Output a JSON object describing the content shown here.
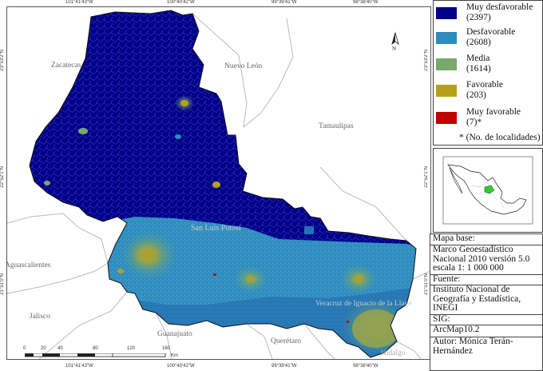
{
  "map": {
    "coords_top": [
      "101°41'43\"W",
      "100°40'42\"W",
      "99°39'41\"W",
      "98°38'40\"W"
    ],
    "coords_bottom": [
      "101°41'43\"W",
      "100°40'42\"W",
      "99°39'41\"W",
      "98°38'40\"W"
    ],
    "coords_left": [
      "23°53'2\"N",
      "22°52'1\"N",
      "21°51'0\"N"
    ],
    "coords_right": [
      "23°53'2\"N",
      "22°52'1\"N",
      "21°51'0\"N"
    ],
    "north_label": "N",
    "neighbor_states": {
      "zacatecas": "Zacatecas",
      "nuevo_leon": "Nuevo León",
      "tamaulipas": "Tamaulipas",
      "aguascalientes": "Aguascalientes",
      "jalisco": "Jalisco",
      "guanajuato": "Guanajuato",
      "queretaro": "Querétaro",
      "hidalgo": "Hidalgo"
    },
    "state_label": "San Luis Potosí",
    "region_label": "Veracruz de Ignacio de la Llave",
    "scale": {
      "ticks": [
        "0",
        "20",
        "40",
        "80",
        "120",
        "160"
      ],
      "unit": "Km"
    }
  },
  "legend": {
    "items": [
      {
        "label": "Muy desfavorable",
        "count": "(2397)",
        "color": "#00008b"
      },
      {
        "label": "Desfavorable",
        "count": "(2608)",
        "color": "#2b8cbe"
      },
      {
        "label": "Media",
        "count": "(1614)",
        "color": "#78a86a"
      },
      {
        "label": "Favorable",
        "count": "(203)",
        "color": "#b5a01e"
      },
      {
        "label": "Muy favorable",
        "count": "(7)*",
        "color": "#c00000"
      }
    ],
    "note": "* (No. de localidades)"
  },
  "info": {
    "rows": [
      "Mapa base:",
      "Marco Geoestadístico\nNacional 2010 versión 5.0\nescala 1: 1 000 000",
      "Fuente:",
      "Instituto Nacional de\nGeografía y Estadística,\nINEGI",
      "SIG:",
      "ArcMap10.2",
      "Autor: Mónica Terán-\nHernández"
    ]
  }
}
